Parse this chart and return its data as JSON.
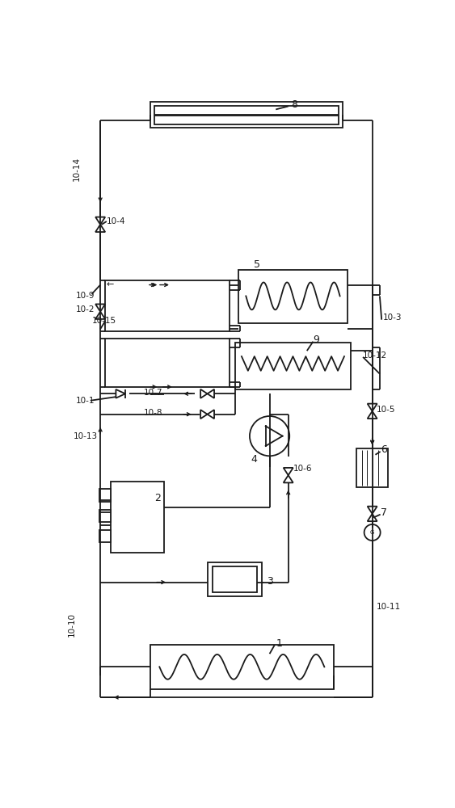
{
  "bg_color": "#ffffff",
  "line_color": "#1a1a1a",
  "fig_width": 5.63,
  "fig_height": 10.0,
  "dpi": 100
}
